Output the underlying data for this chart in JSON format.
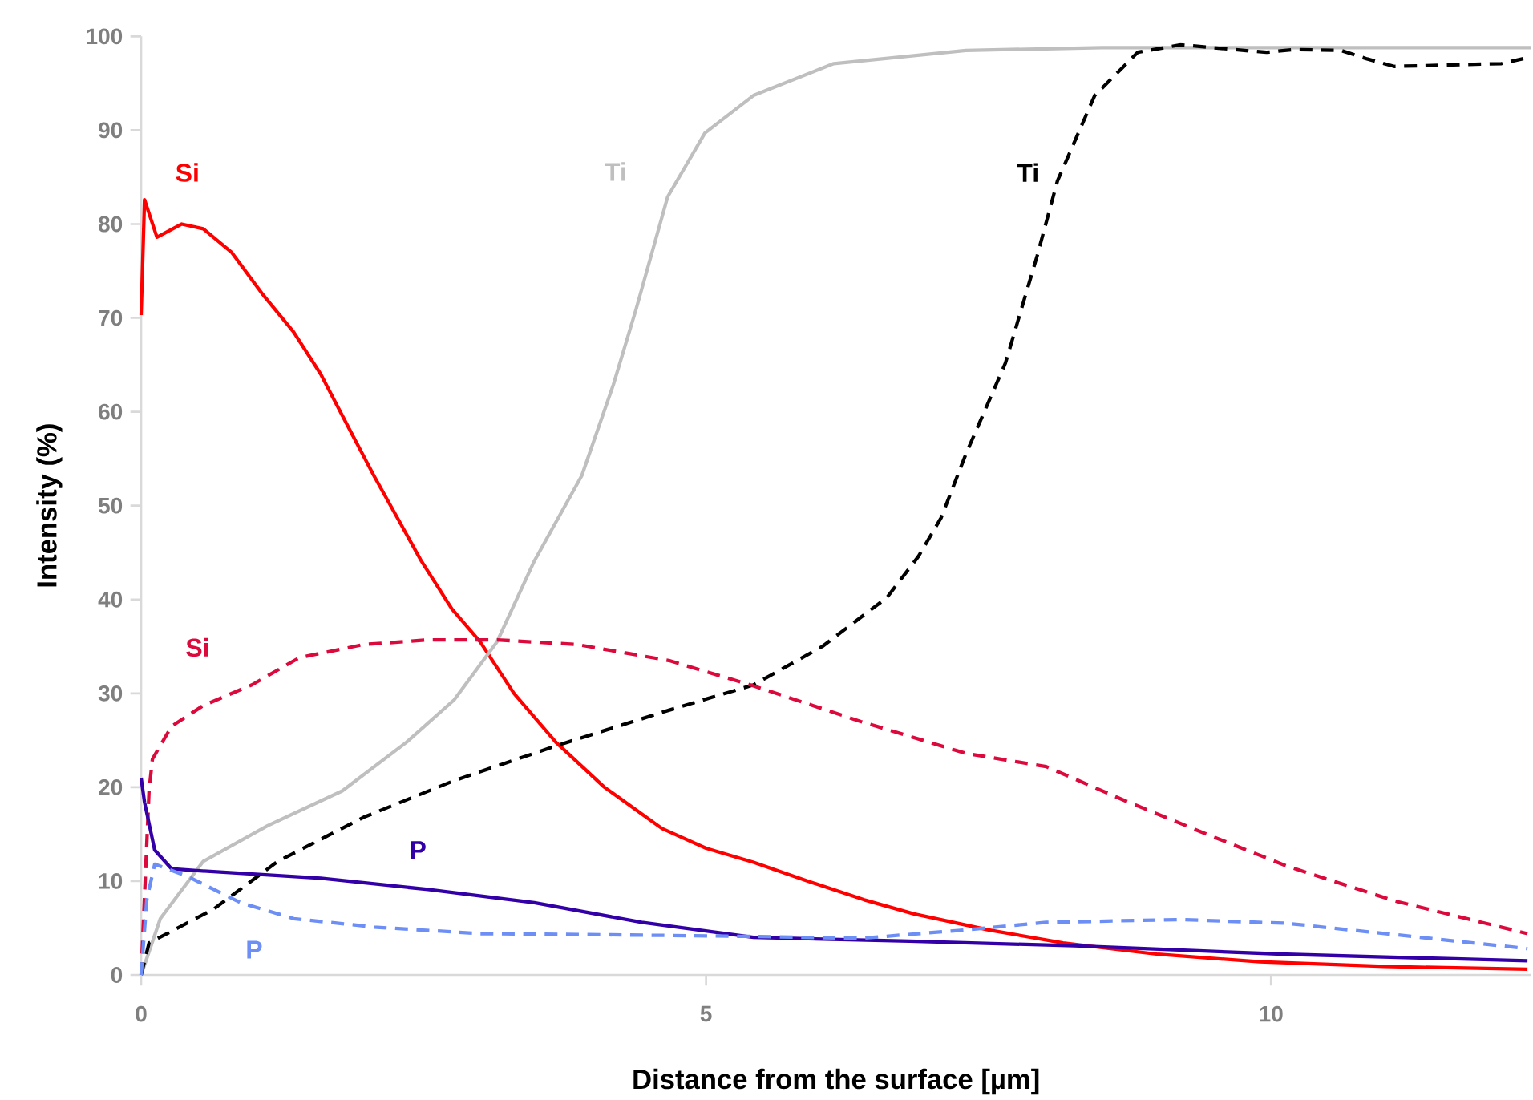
{
  "chart_data": {
    "type": "line",
    "xlabel": "Distance from the surface [µm]",
    "ylabel": "Intensity (%)",
    "xlim": [
      0,
      12.3
    ],
    "ylim": [
      0,
      100
    ],
    "xticks": [
      0,
      5,
      10
    ],
    "yticks": [
      0,
      10,
      20,
      30,
      40,
      50,
      60,
      70,
      80,
      90,
      100
    ],
    "series": [
      {
        "name": "Si",
        "color": "#ff0000",
        "line_style": "solid",
        "x": [
          0,
          0.03,
          0.14,
          0.36,
          0.55,
          0.8,
          1.07,
          1.35,
          1.59,
          1.85,
          2.06,
          2.3,
          2.48,
          2.75,
          3.0,
          3.3,
          3.67,
          4.1,
          4.61,
          5.0,
          5.42,
          5.9,
          6.4,
          6.84,
          7.5,
          8.16,
          9,
          9.9,
          11,
          12.27
        ],
        "values": [
          70.3,
          82.6,
          78.6,
          80,
          79.5,
          77,
          72.6,
          68.5,
          64,
          58,
          53.2,
          48,
          44.1,
          39,
          35.5,
          30,
          24.8,
          20,
          15.6,
          13.5,
          12,
          10,
          8,
          6.5,
          4.8,
          3.4,
          2.2,
          1.4,
          0.9,
          0.6
        ]
      },
      {
        "name": "Ti",
        "color": "#bfbfbf",
        "line_style": "solid",
        "x": [
          0,
          0.17,
          0.55,
          1.12,
          1.78,
          2.35,
          2.77,
          3.15,
          3.48,
          3.9,
          4.18,
          4.38,
          4.66,
          4.99,
          5.42,
          6.13,
          7.3,
          8.5,
          10,
          12.3
        ],
        "values": [
          0,
          6,
          12.1,
          15.9,
          19.6,
          24.8,
          29.3,
          35.5,
          44.1,
          53.2,
          62.9,
          70.9,
          82.9,
          89.7,
          93.7,
          97.1,
          98.5,
          98.8,
          98.8,
          98.8
        ]
      },
      {
        "name": "Ti",
        "color": "#000000",
        "line_style": "dashed",
        "x": [
          0,
          0.07,
          0.64,
          1.21,
          1.97,
          2.77,
          3.67,
          4.67,
          5.42,
          6.03,
          6.6,
          6.88,
          7.08,
          7.3,
          7.65,
          7.93,
          8.11,
          8.44,
          8.82,
          9.2,
          9.96,
          10.2,
          10.62,
          10.85,
          11.09,
          12.04,
          12.3
        ],
        "values": [
          0,
          3.4,
          7,
          12.1,
          16.8,
          20.7,
          24.4,
          28.2,
          30.9,
          35,
          40.2,
          44.6,
          48.7,
          55.5,
          65.2,
          76.6,
          84.6,
          93.7,
          98.3,
          99.1,
          98.3,
          98.6,
          98.5,
          97.6,
          96.8,
          97.1,
          97.8
        ]
      },
      {
        "name": "Si",
        "color": "#dc0a3c",
        "line_style": "dashed",
        "x": [
          0,
          0.07,
          0.1,
          0.27,
          0.55,
          0.98,
          1.4,
          1.97,
          2.54,
          3.15,
          3.86,
          4.67,
          5.42,
          6.37,
          7.3,
          8.01,
          8.72,
          9.43,
          10.14,
          11.09,
          12.27
        ],
        "values": [
          0,
          19.6,
          23,
          26.5,
          28.7,
          30.9,
          33.8,
          35.2,
          35.7,
          35.7,
          35.2,
          33.5,
          30.8,
          27,
          23.6,
          22.2,
          18.5,
          15,
          11.6,
          7.9,
          4.4
        ]
      },
      {
        "name": "P",
        "color": "#3300a8",
        "line_style": "solid",
        "x": [
          0,
          0.03,
          0.12,
          0.27,
          0.64,
          1.59,
          2.54,
          3.48,
          4.43,
          5.42,
          6.8,
          8.26,
          10.14,
          12.27
        ],
        "values": [
          21,
          18.4,
          13.3,
          11.3,
          11,
          10.3,
          9.1,
          7.7,
          5.6,
          4,
          3.6,
          3.1,
          2.2,
          1.5
        ]
      },
      {
        "name": "P",
        "color": "#6c8ef5",
        "line_style": "dashed",
        "x": [
          0,
          0.05,
          0.12,
          0.41,
          0.88,
          1.35,
          2.06,
          3.0,
          3.96,
          5.42,
          6.37,
          7.3,
          8.01,
          9.2,
          10.14,
          11.09,
          12.27
        ],
        "values": [
          0,
          8,
          11.8,
          10.5,
          7.7,
          6,
          5.1,
          4.4,
          4.3,
          4.1,
          3.9,
          4.8,
          5.6,
          5.9,
          5.5,
          4.3,
          2.8
        ]
      }
    ]
  }
}
